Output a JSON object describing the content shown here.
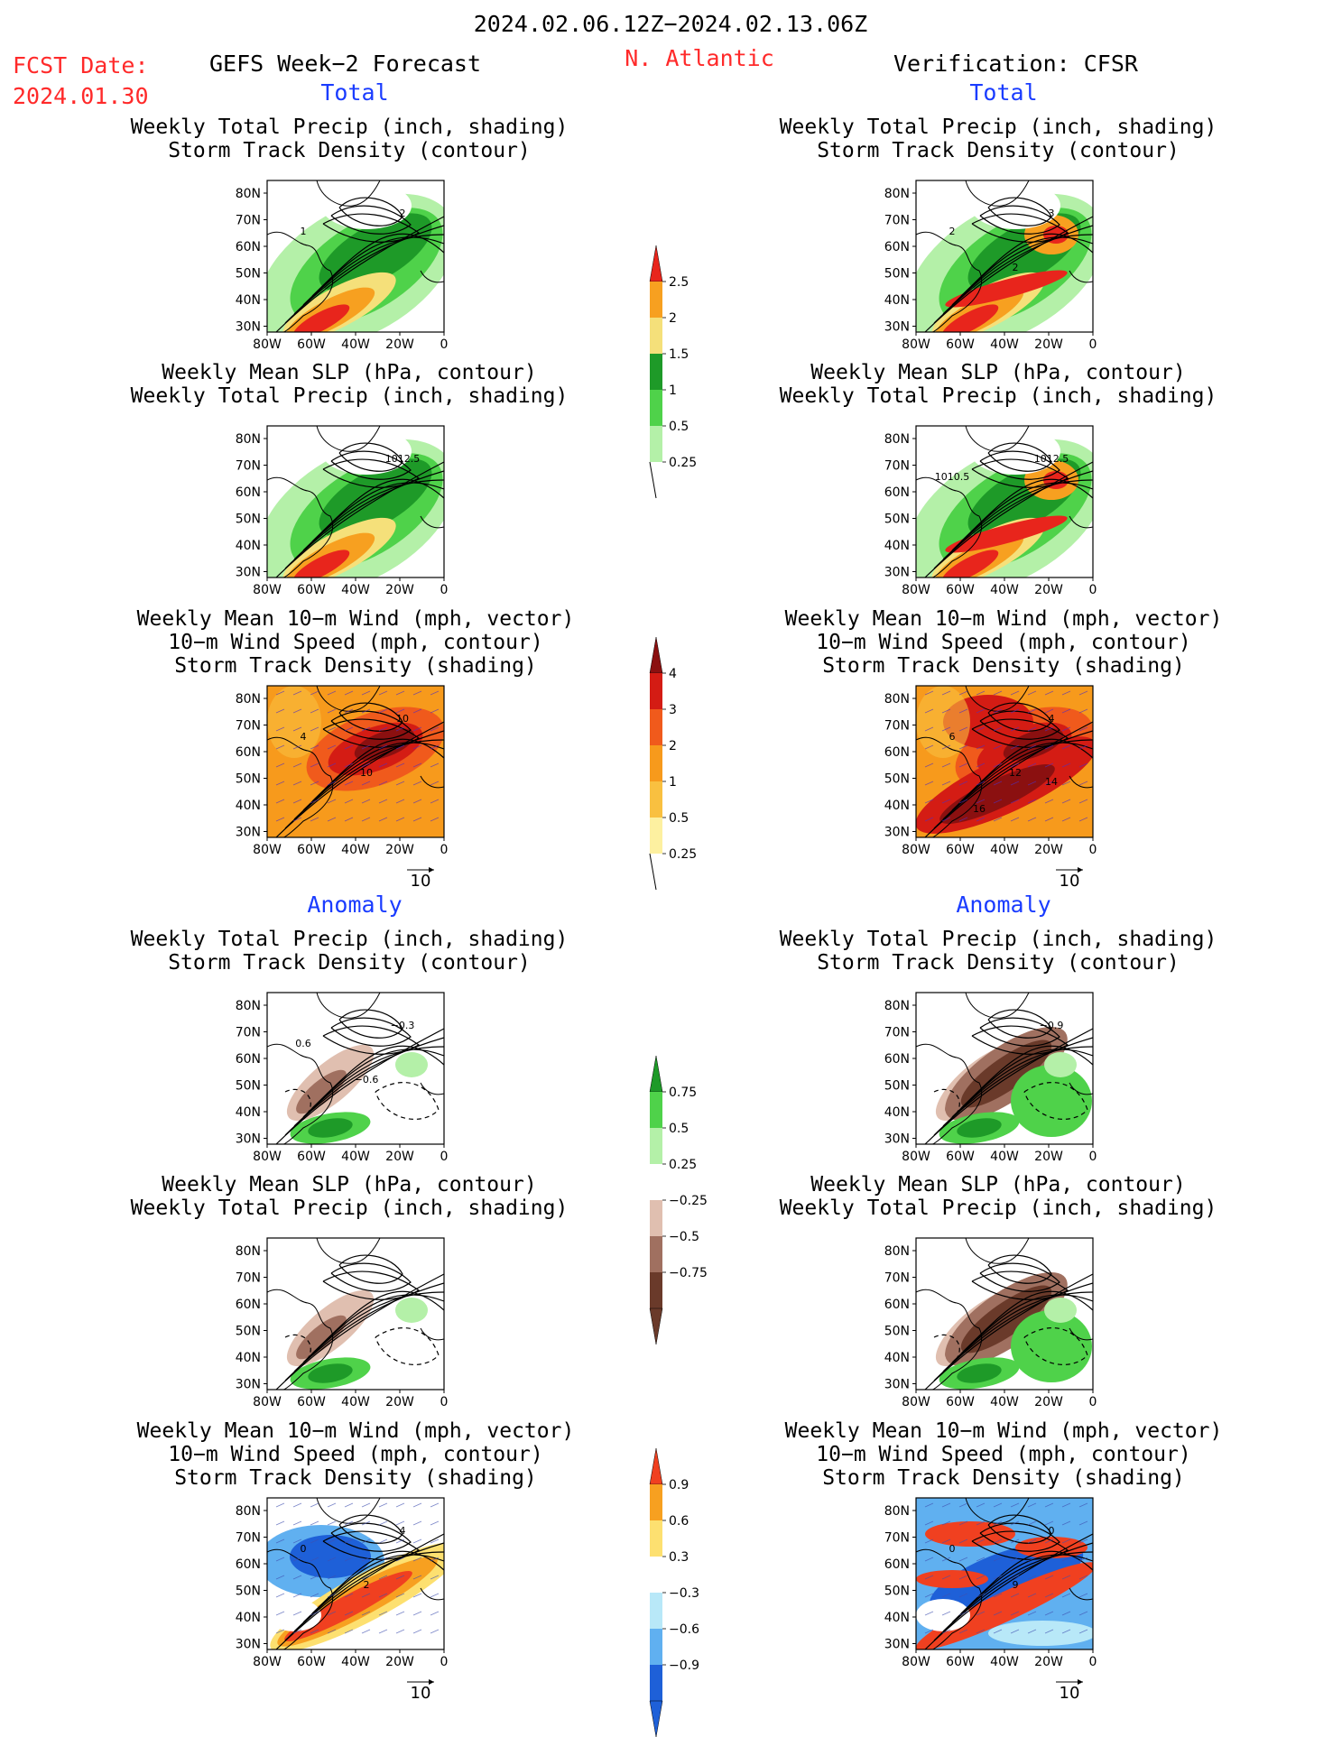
{
  "header": {
    "date_range": "2024.02.06.12Z−2024.02.13.06Z",
    "fcst_label": "FCST Date:",
    "fcst_date": "2024.01.30",
    "left_title": "GEFS Week−2 Forecast",
    "region": "N. Atlantic",
    "right_title": "Verification: CFSR"
  },
  "sections": {
    "total": "Total",
    "anomaly": "Anomaly"
  },
  "titles": {
    "precip_track": [
      "Weekly Total Precip (inch, shading)",
      "Storm Track Density (contour)"
    ],
    "slp_precip": [
      "Weekly Mean SLP (hPa, contour)",
      "Weekly Total Precip (inch, shading)"
    ],
    "wind_track": [
      "Weekly Mean 10−m Wind (mph, vector)",
      "10−m Wind Speed (mph, contour)",
      "Storm Track Density (shading)"
    ]
  },
  "axes": {
    "lat_labels": [
      "80N",
      "70N",
      "60N",
      "50N",
      "40N",
      "30N"
    ],
    "lon_labels": [
      "80W",
      "60W",
      "40W",
      "20W",
      "0"
    ],
    "vector_ref": "10"
  },
  "colorbars": {
    "precip_total": {
      "labels": [
        "2.5",
        "2",
        "1.5",
        "1",
        "0.5",
        "0.25"
      ],
      "colors": [
        "#e8251c",
        "#f7a020",
        "#f5e07a",
        "#1e9a28",
        "#4fd24a",
        "#b4f0a8"
      ]
    },
    "track_total": {
      "labels": [
        "4",
        "3",
        "2",
        "1",
        "0.5",
        "0.25"
      ],
      "colors": [
        "#8b1010",
        "#d41c14",
        "#f05a1c",
        "#f79a1c",
        "#f9c040",
        "#fdf0a0"
      ]
    },
    "precip_anom": {
      "labels": [
        "0.75",
        "0.5",
        "0.25",
        "−0.25",
        "−0.5",
        "−0.75"
      ],
      "colors": [
        "#1e9a28",
        "#4fd24a",
        "#b4f0a8",
        "#ffffff",
        "#e0bfb0",
        "#a07060",
        "#6a3a2a"
      ]
    },
    "track_anom": {
      "labels": [
        "0.9",
        "0.6",
        "0.3",
        "−0.3",
        "−0.6",
        "−0.9"
      ],
      "colors": [
        "#f04020",
        "#f7a020",
        "#fde070",
        "#ffffff",
        "#b8e8f8",
        "#60b0f0",
        "#1e60d8"
      ]
    }
  },
  "maps": {
    "fc_precip_total": {
      "labels": [
        "2",
        "1"
      ]
    },
    "fc_slp_total": {
      "labels": [
        "1012.5"
      ]
    },
    "fc_wind_total": {
      "labels": [
        "10",
        "4",
        "10"
      ]
    },
    "vf_precip_total": {
      "labels": [
        "3",
        "2",
        "2"
      ]
    },
    "vf_slp_total": {
      "labels": [
        "1012.5",
        "1010.5"
      ]
    },
    "vf_wind_total": {
      "labels": [
        "4",
        "6",
        "12",
        "14",
        "16"
      ]
    },
    "fc_precip_anom": {
      "labels": [
        "−0.3",
        "0.6",
        "−0.6"
      ]
    },
    "vf_precip_anom": {
      "labels": [
        "−0.9"
      ]
    },
    "fc_track_anom": {
      "labels": [
        "4",
        "0",
        "2"
      ]
    },
    "vf_track_anom": {
      "labels": [
        "0",
        "0",
        "9"
      ]
    }
  }
}
